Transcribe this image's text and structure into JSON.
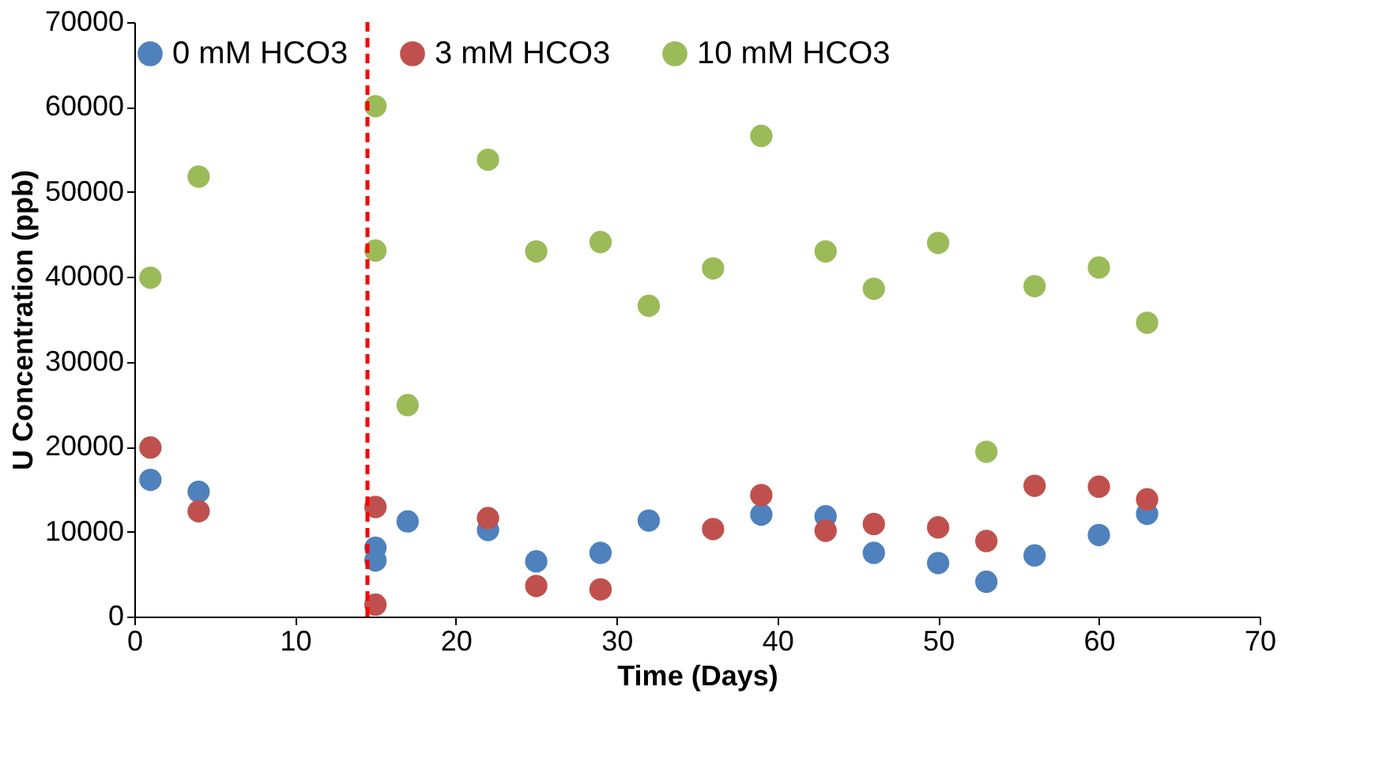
{
  "chart_data": {
    "type": "scatter",
    "xlabel": "Time (Days)",
    "ylabel": "U Concentration (ppb)",
    "xlim": [
      0,
      70
    ],
    "xticks": [
      0,
      10,
      20,
      30,
      40,
      50,
      60,
      70
    ],
    "ylim": [
      0,
      70000
    ],
    "yticks": [
      0,
      10000,
      20000,
      30000,
      40000,
      50000,
      60000,
      70000
    ],
    "grid": false,
    "legend": "top",
    "marker": "circle",
    "series": [
      {
        "name": "0 mM HCO3",
        "color": "#4f81bd",
        "x": [
          1,
          4,
          15,
          15,
          17,
          22,
          25,
          29,
          32,
          36,
          39,
          43,
          46,
          50,
          53,
          56,
          60,
          63
        ],
        "values": [
          16100,
          14700,
          8100,
          6600,
          11200,
          10200,
          6500,
          7500,
          11300,
          null,
          12000,
          11800,
          7500,
          6300,
          4100,
          7200,
          9600,
          12100
        ]
      },
      {
        "name": "3 mM HCO3",
        "color": "#c0504d",
        "x": [
          1,
          4,
          15,
          15,
          22,
          25,
          29,
          36,
          39,
          43,
          46,
          50,
          53,
          56,
          60,
          63
        ],
        "values": [
          19900,
          12400,
          12900,
          1400,
          11600,
          3600,
          3200,
          10300,
          14300,
          10100,
          10900,
          10500,
          8900,
          15400,
          15300,
          13800
        ]
      },
      {
        "name": "10 mM HCO3",
        "color": "#9bbb59",
        "x": [
          1,
          4,
          15,
          15,
          17,
          22,
          25,
          29,
          32,
          36,
          39,
          43,
          46,
          50,
          53,
          56,
          60,
          63
        ],
        "values": [
          39900,
          51800,
          60100,
          43100,
          24900,
          53800,
          43000,
          44100,
          36600,
          41000,
          56600,
          43000,
          38600,
          44000,
          19400,
          38900,
          41100,
          34600
        ]
      }
    ],
    "ref_lines": [
      {
        "axis": "x",
        "value": 14.5,
        "color": "#ff0000",
        "line_style": "dashed"
      }
    ]
  }
}
